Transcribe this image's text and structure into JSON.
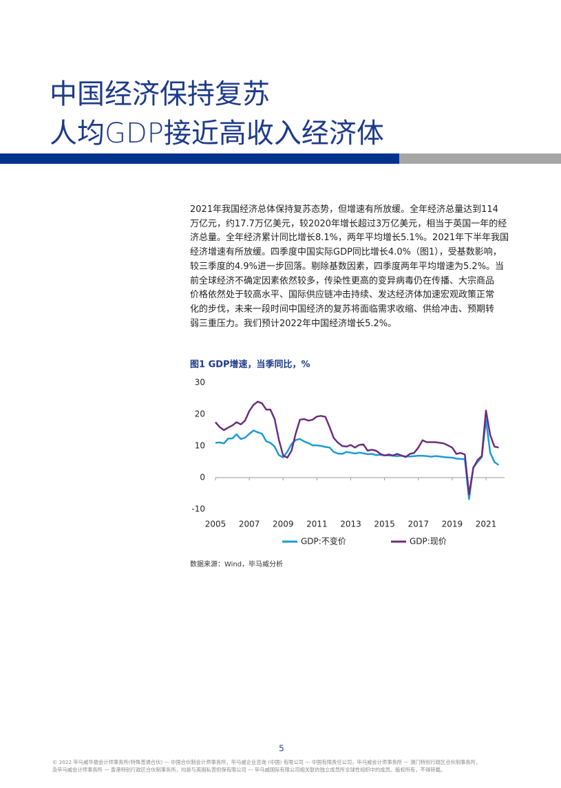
{
  "header": {
    "title_lines": [
      "中国经济保持复苏",
      "人均GDP接近高收入经济体"
    ]
  },
  "body": {
    "lines": [
      "2021年我国经济总体保持复苏态势，但增速有所放缓。全年经济总量达到114",
      "万亿元，约17.7万亿美元，较2020年增长超过3万亿美元，相当于英国一年的经",
      "济总量。全年经济累计同比增长8.1%，两年平均增长5.1%。2021年下半年我国",
      "经济增速有所放缓。四季度中国实际GDP同比增长4.0%（图1），受基数影响，",
      "较三季度的4.9%进一步回落。剔除基数因素，四季度两年平均增速为5.2%。当",
      "前全球经济不确定因素依然较多，传染性更高的变异病毒仍在传播、大宗商品",
      "价格依然处于较高水平、国际供应链冲击持续、发达经济体加速宏观政策正常",
      "化的步伐，未来一段时间中国经济的复苏将面临需求收缩、供给冲击、预期转",
      "弱三重压力。我们预计2022年中国经济增长5.2%。"
    ]
  },
  "chart_data": {
    "type": "line",
    "title": "图1 GDP增速，当季同比，%",
    "x": [
      2005,
      2005.25,
      2005.5,
      2005.75,
      2006,
      2006.25,
      2006.5,
      2006.75,
      2007,
      2007.25,
      2007.5,
      2007.75,
      2008,
      2008.25,
      2008.5,
      2008.75,
      2009,
      2009.25,
      2009.5,
      2009.75,
      2010,
      2010.25,
      2010.5,
      2010.75,
      2011,
      2011.25,
      2011.5,
      2011.75,
      2012,
      2012.25,
      2012.5,
      2012.75,
      2013,
      2013.25,
      2013.5,
      2013.75,
      2014,
      2014.25,
      2014.5,
      2014.75,
      2015,
      2015.25,
      2015.5,
      2015.75,
      2016,
      2016.25,
      2016.5,
      2016.75,
      2017,
      2017.25,
      2017.5,
      2017.75,
      2018,
      2018.25,
      2018.5,
      2018.75,
      2019,
      2019.25,
      2019.5,
      2019.75,
      2020,
      2020.25,
      2020.5,
      2020.75,
      2021,
      2021.25,
      2021.5,
      2021.75
    ],
    "xlim": [
      2005,
      2022.1
    ],
    "xticks": [
      2005,
      2007,
      2009,
      2011,
      2013,
      2015,
      2017,
      2019,
      2021
    ],
    "ylim": [
      -10,
      30
    ],
    "yticks": [
      -10,
      0,
      10,
      20,
      30
    ],
    "series": [
      {
        "name": "GDP:不变价",
        "color": "#1a9ad6",
        "values": [
          11.0,
          11.1,
          10.8,
          12.3,
          12.4,
          13.7,
          12.2,
          12.6,
          13.8,
          14.9,
          14.3,
          13.9,
          11.5,
          11.0,
          9.8,
          7.1,
          6.4,
          8.2,
          10.6,
          11.9,
          12.2,
          11.4,
          10.9,
          10.2,
          10.2,
          10.0,
          9.7,
          9.5,
          8.1,
          7.6,
          7.5,
          8.1,
          7.9,
          7.6,
          7.9,
          7.7,
          7.4,
          7.5,
          7.1,
          7.2,
          7.0,
          7.0,
          6.9,
          6.8,
          6.9,
          6.7,
          6.7,
          6.8,
          6.9,
          6.9,
          6.8,
          6.6,
          6.8,
          6.7,
          6.5,
          6.4,
          6.3,
          6.0,
          5.9,
          5.8,
          -6.8,
          3.2,
          4.9,
          6.5,
          18.3,
          7.9,
          4.9,
          4.0
        ]
      },
      {
        "name": "GDP:现价",
        "color": "#6b2c7e",
        "values": [
          17.5,
          16.0,
          15.0,
          15.8,
          16.5,
          17.5,
          16.8,
          18.0,
          21.0,
          23.0,
          24.0,
          23.5,
          21.5,
          21.5,
          18.5,
          12.0,
          7.0,
          6.3,
          8.5,
          14.0,
          18.3,
          18.5,
          18.0,
          18.3,
          19.3,
          19.5,
          19.2,
          16.0,
          12.5,
          11.0,
          10.0,
          9.8,
          10.3,
          9.5,
          10.3,
          10.5,
          8.5,
          8.8,
          8.5,
          7.5,
          7.0,
          7.3,
          7.0,
          7.5,
          7.0,
          6.5,
          7.5,
          7.8,
          9.5,
          11.8,
          11.2,
          11.2,
          11.2,
          11.0,
          10.8,
          10.2,
          9.5,
          7.5,
          7.8,
          7.3,
          -5.3,
          3.1,
          5.5,
          6.8,
          21.2,
          13.5,
          9.8,
          9.5
        ]
      }
    ],
    "legend": "bottom",
    "source": "数据来源：Wind，毕马威分析"
  },
  "page_number": "5",
  "footer": {
    "lines": [
      "© 2022 毕马威华振会计师事务所(特殊普通合伙) — 中国合伙制会计师事务所，毕马威企业咨询 (中国) 有限公司 — 中国有限责任公司，毕马威会计师事务所 — 澳门特别行政区合伙制事务所，",
      "及毕马威会计师事务所 — 香港特别行政区合伙制事务所，均是与英国私营担保有限公司 — 毕马威国际有限公司相关联的独立成员所全球性组织中的成员。版权所有，不得转载。"
    ]
  }
}
